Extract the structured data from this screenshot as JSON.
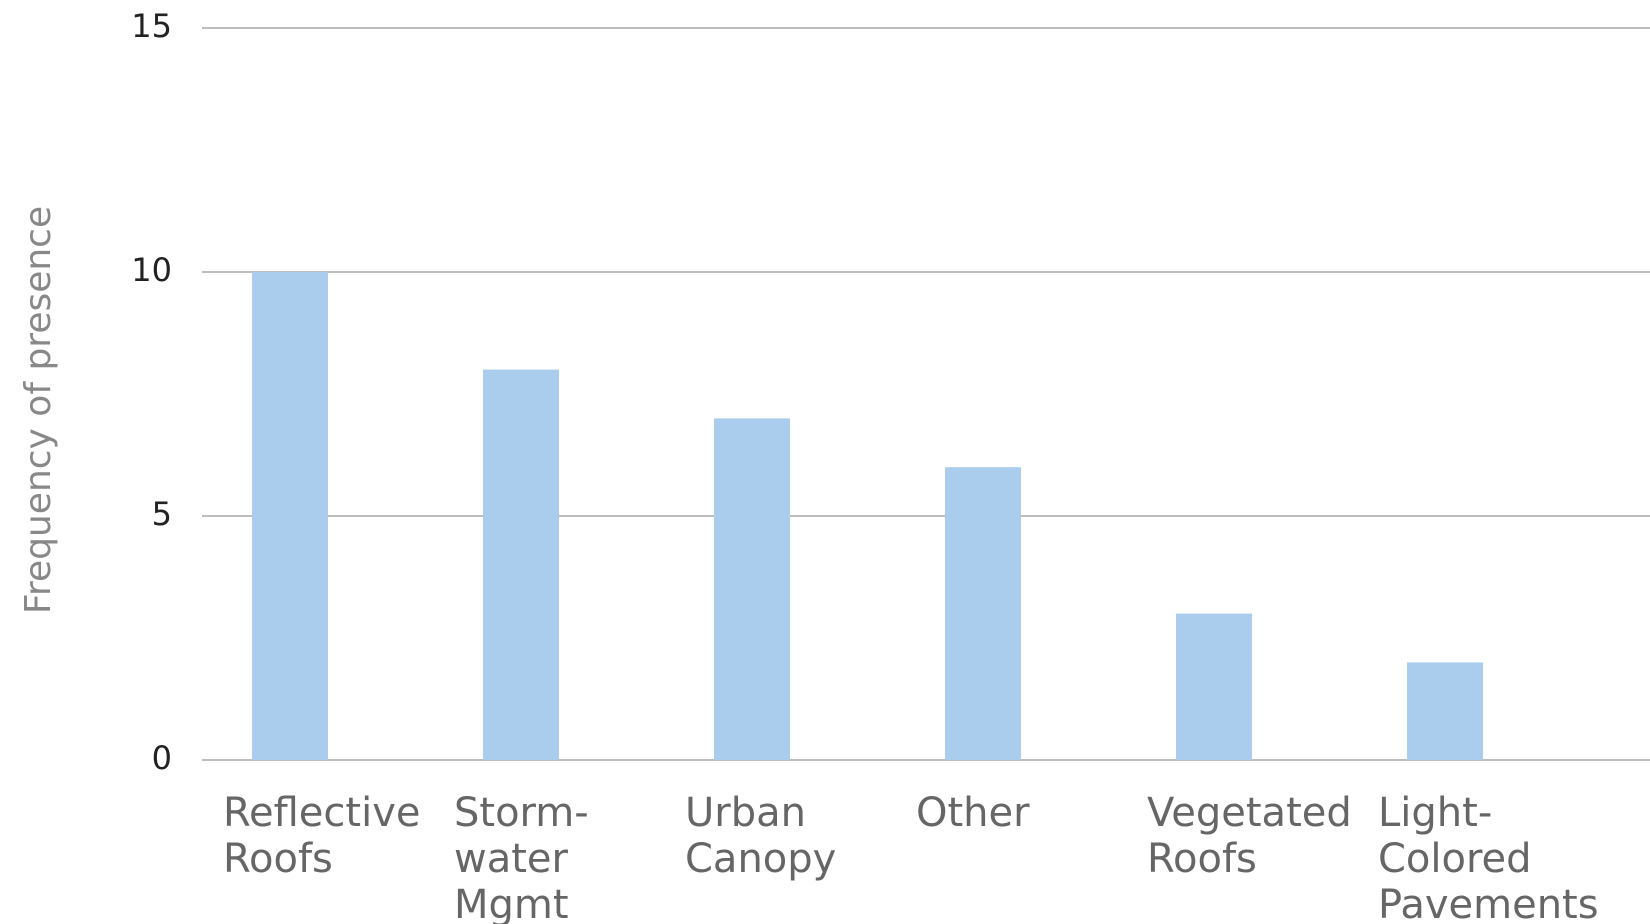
{
  "chart_data": {
    "type": "bar",
    "y_label": "Frequency of presence",
    "categories": [
      [
        "Reflective",
        "Roofs"
      ],
      [
        "Storm-",
        "water",
        "Mgmt"
      ],
      [
        "Urban",
        "Canopy"
      ],
      [
        "Other"
      ],
      [
        "Vegetated",
        "Roofs"
      ],
      [
        "Light-",
        "Colored",
        "Pavements"
      ]
    ],
    "values": [
      10,
      8,
      7,
      6,
      3,
      2
    ],
    "color": "#aacdee",
    "ylim": [
      0,
      15
    ],
    "yticks": [
      0,
      5,
      10,
      15
    ],
    "grid": true
  }
}
